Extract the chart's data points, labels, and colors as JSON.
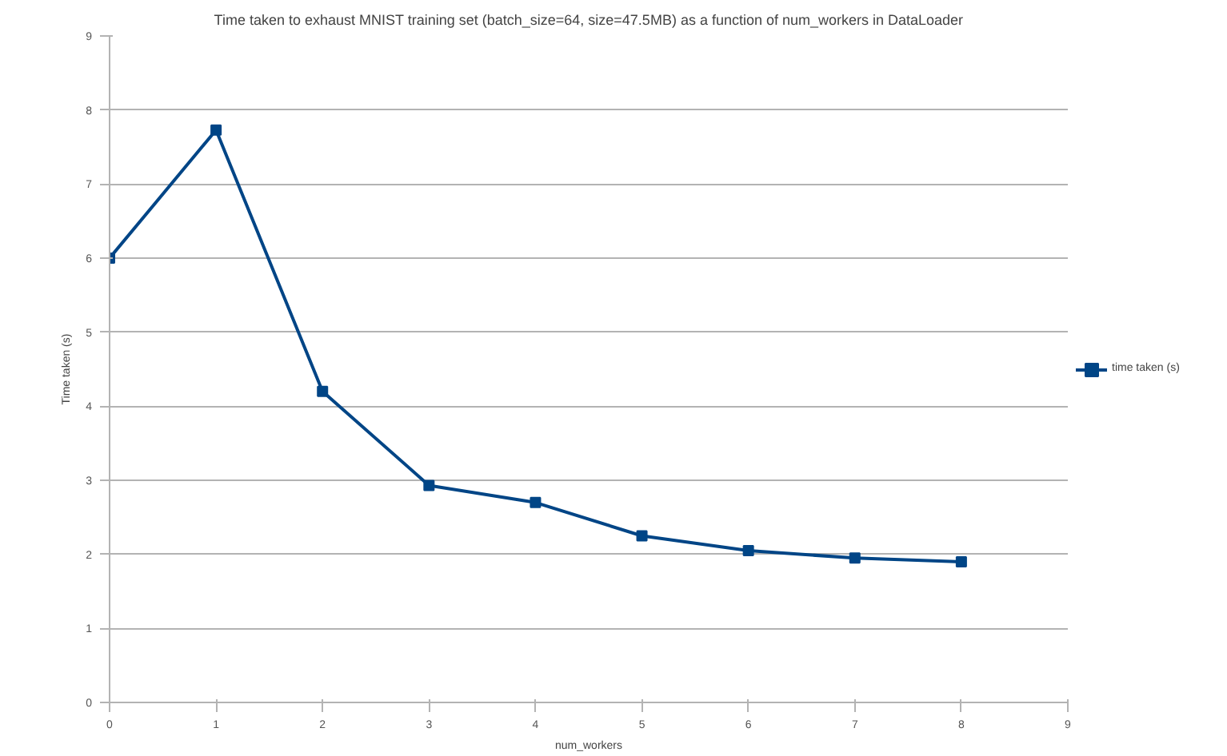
{
  "chart_data": {
    "type": "line",
    "title": "Time taken to exhaust MNIST training set (batch_size=64, size=47.5MB) as a function of num_workers in DataLoader",
    "xlabel": "num_workers",
    "ylabel": "Time taken (s)",
    "x": [
      0,
      1,
      2,
      3,
      4,
      5,
      6,
      7,
      8
    ],
    "series": [
      {
        "name": "time taken (s)",
        "color": "#004586",
        "values": [
          6.0,
          7.73,
          4.2,
          2.93,
          2.7,
          2.25,
          2.05,
          1.95,
          1.9
        ]
      }
    ],
    "xlim": [
      0,
      9
    ],
    "ylim": [
      0,
      9
    ],
    "xticks": [
      0,
      1,
      2,
      3,
      4,
      5,
      6,
      7,
      8,
      9
    ],
    "yticks": [
      0,
      1,
      2,
      3,
      4,
      5,
      6,
      7,
      8,
      9
    ],
    "grid": "y",
    "legend": "right",
    "marker": "square",
    "line_style": "solid"
  }
}
